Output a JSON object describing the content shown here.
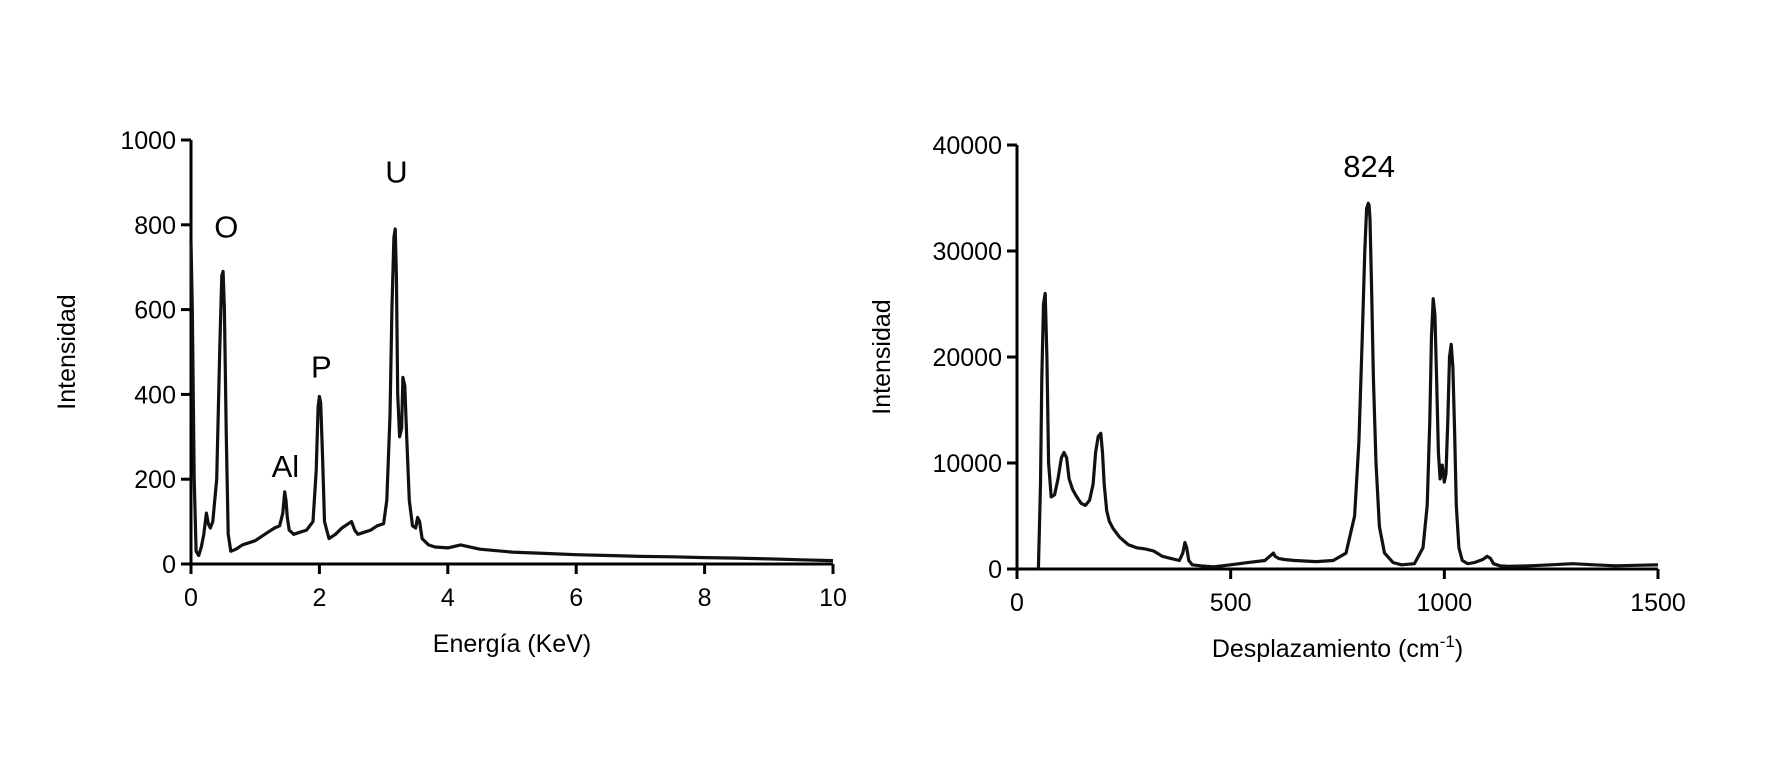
{
  "chart_data": [
    {
      "type": "line",
      "xlabel": "Energía (KeV)",
      "ylabel": "Intensidad",
      "xlim": [
        0,
        10
      ],
      "ylim": [
        0,
        1000
      ],
      "xticks": [
        0,
        2,
        4,
        6,
        8,
        10
      ],
      "yticks": [
        0,
        200,
        400,
        600,
        800,
        1000
      ],
      "grid": false,
      "line_color": "#111111",
      "annotations": [
        {
          "text": "O",
          "x": 0.55,
          "y": 770
        },
        {
          "text": "Al",
          "x": 1.47,
          "y": 205
        },
        {
          "text": "P",
          "x": 2.03,
          "y": 440
        },
        {
          "text": "U",
          "x": 3.2,
          "y": 900
        }
      ],
      "series": [
        {
          "x": [
            0,
            0.02,
            0.05,
            0.08,
            0.12,
            0.16,
            0.2,
            0.24,
            0.27,
            0.3,
            0.34,
            0.4,
            0.45,
            0.48,
            0.5,
            0.52,
            0.55,
            0.58,
            0.62,
            0.7,
            0.8,
            0.9,
            1.0,
            1.1,
            1.2,
            1.3,
            1.38,
            1.43,
            1.46,
            1.48,
            1.5,
            1.53,
            1.6,
            1.7,
            1.8,
            1.9,
            1.95,
            1.98,
            2.0,
            2.02,
            2.05,
            2.08,
            2.15,
            2.25,
            2.35,
            2.45,
            2.5,
            2.55,
            2.6,
            2.7,
            2.8,
            2.9,
            3.0,
            3.05,
            3.1,
            3.13,
            3.16,
            3.18,
            3.2,
            3.22,
            3.25,
            3.28,
            3.3,
            3.33,
            3.36,
            3.4,
            3.45,
            3.5,
            3.53,
            3.56,
            3.6,
            3.7,
            3.8,
            4.0,
            4.2,
            4.5,
            5.0,
            5.5,
            6.0,
            6.5,
            7.0,
            7.5,
            8.0,
            8.5,
            9.0,
            9.5,
            10.0
          ],
          "y": [
            760,
            600,
            200,
            30,
            20,
            40,
            70,
            120,
            95,
            85,
            100,
            200,
            520,
            680,
            690,
            600,
            300,
            70,
            30,
            35,
            45,
            50,
            55,
            65,
            75,
            85,
            90,
            120,
            170,
            150,
            110,
            80,
            70,
            75,
            80,
            100,
            220,
            370,
            395,
            380,
            250,
            100,
            60,
            70,
            85,
            95,
            100,
            80,
            70,
            75,
            80,
            90,
            95,
            150,
            350,
            600,
            770,
            790,
            680,
            400,
            300,
            320,
            440,
            420,
            300,
            150,
            90,
            85,
            110,
            100,
            60,
            45,
            40,
            38,
            45,
            35,
            28,
            25,
            22,
            20,
            18,
            17,
            15,
            14,
            12,
            10,
            8
          ]
        }
      ]
    },
    {
      "type": "line",
      "xlabel_main": "Desplazamiento (cm",
      "xlabel_sup": "-1",
      "xlabel_end": ")",
      "ylabel": "Intensidad",
      "xlim": [
        0,
        1500
      ],
      "ylim": [
        0,
        40000
      ],
      "xticks": [
        0,
        500,
        1000,
        1500
      ],
      "yticks": [
        0,
        10000,
        20000,
        30000,
        40000
      ],
      "grid": false,
      "line_color": "#111111",
      "annotations": [
        {
          "text": "824",
          "x": 824,
          "y": 37000
        }
      ],
      "series": [
        {
          "x": [
            50,
            55,
            58,
            62,
            66,
            70,
            74,
            80,
            88,
            96,
            104,
            110,
            116,
            122,
            130,
            140,
            150,
            160,
            170,
            178,
            184,
            190,
            196,
            200,
            204,
            210,
            216,
            225,
            240,
            260,
            280,
            300,
            320,
            340,
            360,
            380,
            388,
            393,
            397,
            402,
            410,
            430,
            460,
            500,
            540,
            580,
            600,
            604,
            612,
            625,
            650,
            700,
            740,
            770,
            790,
            800,
            808,
            814,
            818,
            822,
            824,
            826,
            830,
            834,
            840,
            848,
            860,
            880,
            900,
            930,
            950,
            960,
            966,
            970,
            974,
            978,
            982,
            986,
            990,
            995,
            1000,
            1004,
            1008,
            1012,
            1016,
            1020,
            1024,
            1028,
            1034,
            1042,
            1055,
            1070,
            1090,
            1100,
            1108,
            1115,
            1130,
            1150,
            1200,
            1250,
            1300,
            1350,
            1400,
            1450,
            1500
          ],
          "y": [
            0,
            8000,
            18000,
            25000,
            26000,
            20000,
            10000,
            6800,
            7000,
            8500,
            10500,
            11000,
            10500,
            8500,
            7500,
            6800,
            6200,
            6000,
            6500,
            8000,
            11000,
            12500,
            12800,
            11000,
            8000,
            5500,
            4500,
            3800,
            3000,
            2300,
            2000,
            1900,
            1700,
            1200,
            1000,
            800,
            1500,
            2500,
            2000,
            800,
            400,
            300,
            200,
            400,
            600,
            800,
            1500,
            1200,
            1000,
            900,
            800,
            700,
            800,
            1500,
            5000,
            12000,
            22000,
            30000,
            34000,
            34500,
            34300,
            33000,
            26000,
            18000,
            10000,
            4000,
            1500,
            600,
            400,
            500,
            2000,
            6000,
            14000,
            22000,
            25500,
            24000,
            18000,
            11000,
            8500,
            9800,
            8200,
            9000,
            14000,
            20000,
            21200,
            19000,
            13000,
            6000,
            2000,
            800,
            500,
            600,
            900,
            1200,
            1000,
            500,
            300,
            250,
            300,
            400,
            500,
            400,
            300,
            350,
            400
          ]
        }
      ]
    }
  ]
}
